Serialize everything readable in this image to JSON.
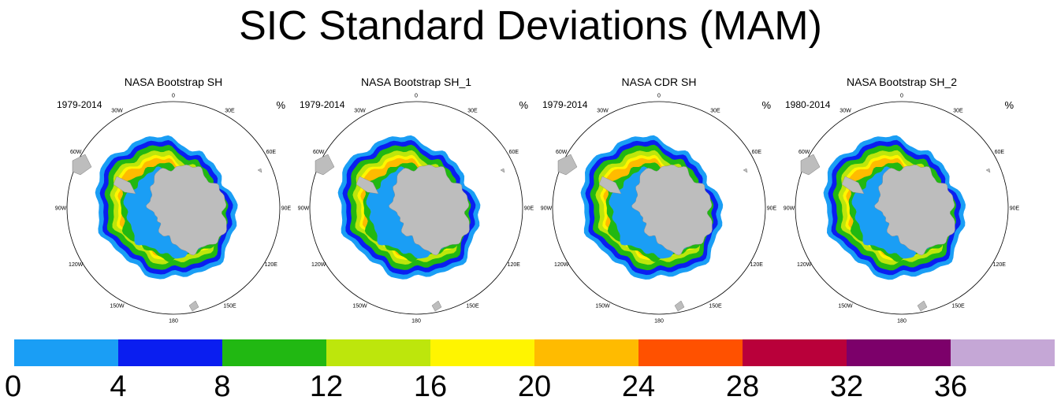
{
  "title": "SIC Standard Deviations (MAM)",
  "chart_data": {
    "type": "heatmap",
    "projection": "south polar stereographic",
    "title": "SIC Standard Deviations (MAM)",
    "unit": "%",
    "longitude_labels": [
      "0",
      "30E",
      "60E",
      "90E",
      "120E",
      "150E",
      "180",
      "150W",
      "120W",
      "90W",
      "60W",
      "30W"
    ],
    "panels": [
      {
        "title": "NASA Bootstrap SH",
        "period": "1979-2014",
        "unit": "%"
      },
      {
        "title": "NASA Bootstrap SH_1",
        "period": "1979-2014",
        "unit": "%"
      },
      {
        "title": "NASA CDR SH",
        "period": "1979-2014",
        "unit": "%"
      },
      {
        "title": "NASA Bootstrap SH_2",
        "period": "1980-2014",
        "unit": "%"
      }
    ],
    "colorbar": {
      "levels": [
        "0",
        "4",
        "8",
        "12",
        "16",
        "20",
        "24",
        "28",
        "32",
        "36"
      ],
      "colors": [
        "#1a9ef5",
        "#0a1ef0",
        "#21b812",
        "#bde60c",
        "#fff500",
        "#ffbb00",
        "#ff5100",
        "#b9003a",
        "#7c006a",
        "#c5a7d6"
      ]
    }
  },
  "colors": {
    "land": "#bdbdbd",
    "ocean_bg": "#ffffff",
    "circle": "#000000"
  }
}
